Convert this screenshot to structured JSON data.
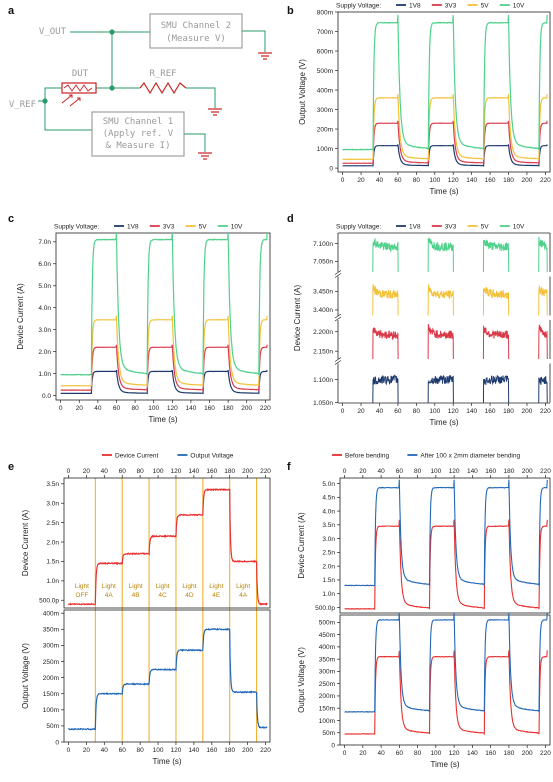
{
  "colors": {
    "1V8": "#1f3b6e",
    "3V3": "#d93a4a",
    "5V": "#f3c23a",
    "10V": "#4fd18b",
    "device_current": "#e8302f",
    "output_voltage": "#2368b8",
    "before": "#e8302f",
    "after": "#2368b8",
    "light_band": "#f2b233",
    "circuit_gray": "#a0a0a0",
    "node_green": "#2a9a6a",
    "wire_red": "#cc2222"
  },
  "panels": {
    "a": {
      "letter": "a",
      "labels": {
        "v_out": "V_OUT",
        "v_ref": "V_REF",
        "dut": "DUT",
        "r_ref": "R_REF",
        "smu2_line1": "SMU Channel 2",
        "smu2_line2": "(Measure V)",
        "smu1_line1": "SMU Channel 1",
        "smu1_line2": "(Apply ref. V",
        "smu1_line3": "& Measure I)"
      }
    },
    "b": {
      "letter": "b"
    },
    "c": {
      "letter": "c"
    },
    "d": {
      "letter": "d"
    },
    "e": {
      "letter": "e"
    },
    "f": {
      "letter": "f"
    }
  },
  "chart_data": [
    {
      "id": "b",
      "type": "line",
      "legend_title": "Supply Voltage:",
      "legend_position": "top",
      "xlabel": "Time (s)",
      "ylabel": "Output Voltage (V)",
      "xlim": [
        -5,
        225
      ],
      "ylim": [
        -20,
        800
      ],
      "x_ticks": [
        "0",
        "20",
        "40",
        "60",
        "80",
        "100",
        "120",
        "140",
        "160",
        "180",
        "200",
        "220"
      ],
      "y_ticks": [
        "0",
        "100m",
        "200m",
        "300m",
        "400m",
        "500m",
        "600m",
        "700m",
        "800m"
      ],
      "y_tick_values": [
        0,
        100,
        200,
        300,
        400,
        500,
        600,
        700,
        800
      ],
      "light_on_intervals": [
        [
          33,
          60
        ],
        [
          93,
          120
        ],
        [
          153,
          180
        ],
        [
          213,
          222
        ]
      ],
      "series": [
        {
          "name": "1V8",
          "color_key": "1V8",
          "off": 12,
          "on": 115
        },
        {
          "name": "3V3",
          "color_key": "3V3",
          "off": 25,
          "on": 230
        },
        {
          "name": "5V",
          "color_key": "5V",
          "off": 45,
          "on": 360
        },
        {
          "name": "10V",
          "color_key": "10V",
          "off": 95,
          "on": 745
        }
      ]
    },
    {
      "id": "c",
      "type": "line",
      "legend_title": "Supply Voltage:",
      "legend_position": "top",
      "xlabel": "Time (s)",
      "ylabel": "Device Current (A)",
      "xlim": [
        -5,
        225
      ],
      "ylim": [
        -0.2,
        7.4
      ],
      "x_ticks": [
        "0",
        "20",
        "40",
        "60",
        "80",
        "100",
        "120",
        "140",
        "160",
        "180",
        "200",
        "220"
      ],
      "y_ticks": [
        "0.0",
        "1.0n",
        "2.0n",
        "3.0n",
        "4.0n",
        "5.0n",
        "6.0n",
        "7.0n"
      ],
      "y_tick_values": [
        0,
        1,
        2,
        3,
        4,
        5,
        6,
        7
      ],
      "light_on_intervals": [
        [
          33,
          60
        ],
        [
          93,
          120
        ],
        [
          153,
          180
        ],
        [
          213,
          222
        ]
      ],
      "series": [
        {
          "name": "1V8",
          "color_key": "1V8",
          "off": 0.1,
          "on": 1.1
        },
        {
          "name": "3V3",
          "color_key": "3V3",
          "off": 0.25,
          "on": 2.2
        },
        {
          "name": "5V",
          "color_key": "5V",
          "off": 0.45,
          "on": 3.45
        },
        {
          "name": "10V",
          "color_key": "10V",
          "off": 0.95,
          "on": 7.1
        }
      ]
    },
    {
      "id": "d",
      "type": "line",
      "legend_title": "Supply Voltage:",
      "legend_position": "top",
      "xlabel": "Time (s)",
      "ylabel": "Device Current (A)",
      "xlim": [
        -5,
        225
      ],
      "broken_axis_segments": [
        {
          "series": "10V",
          "ticks": [
            "7.050n",
            "7.100n"
          ],
          "tick_values": [
            7.05,
            7.1
          ],
          "range": [
            7.02,
            7.13
          ]
        },
        {
          "series": "5V",
          "ticks": [
            "3.400n",
            "3.450n"
          ],
          "tick_values": [
            3.4,
            3.45
          ],
          "range": [
            3.385,
            3.49
          ]
        },
        {
          "series": "3V3",
          "ticks": [
            "2.150n",
            "2.200n"
          ],
          "tick_values": [
            2.15,
            2.2
          ],
          "range": [
            2.13,
            2.23
          ]
        },
        {
          "series": "1V8",
          "ticks": [
            "1.050n",
            "1.100n"
          ],
          "tick_values": [
            1.05,
            1.1
          ],
          "range": [
            1.05,
            1.135
          ]
        }
      ],
      "x_ticks": [
        "0",
        "20",
        "40",
        "60",
        "80",
        "100",
        "120",
        "140",
        "160",
        "180",
        "200",
        "220"
      ],
      "light_on_intervals": [
        [
          33,
          60
        ],
        [
          93,
          120
        ],
        [
          153,
          180
        ],
        [
          213,
          222
        ]
      ],
      "series": [
        {
          "name": "1V8",
          "color_key": "1V8",
          "on": 1.1
        },
        {
          "name": "3V3",
          "color_key": "3V3",
          "on": 2.2
        },
        {
          "name": "5V",
          "color_key": "5V",
          "on": 3.45
        },
        {
          "name": "10V",
          "color_key": "10V",
          "on": 7.1
        }
      ]
    },
    {
      "id": "e",
      "type": "line",
      "legend_position": "top",
      "xlabel": "Time (s)",
      "xlim": [
        -5,
        225
      ],
      "x_ticks": [
        "0",
        "20",
        "40",
        "60",
        "80",
        "100",
        "120",
        "140",
        "160",
        "180",
        "200",
        "220"
      ],
      "light_states": [
        {
          "x": [
            -5,
            30
          ],
          "label1": "Light",
          "label2": "OFF"
        },
        {
          "x": [
            30,
            60
          ],
          "label1": "Light",
          "label2": "4A"
        },
        {
          "x": [
            60,
            90
          ],
          "label1": "Light",
          "label2": "4B"
        },
        {
          "x": [
            90,
            120
          ],
          "label1": "Light",
          "label2": "4C"
        },
        {
          "x": [
            120,
            150
          ],
          "label1": "Light",
          "label2": "4D"
        },
        {
          "x": [
            150,
            180
          ],
          "label1": "Light",
          "label2": "4E"
        },
        {
          "x": [
            180,
            210
          ],
          "label1": "Light",
          "label2": "4A"
        }
      ],
      "band_edges": [
        30,
        60,
        90,
        120,
        150,
        180,
        210
      ],
      "subplots": [
        {
          "name": "Device Current",
          "color_key": "device_current",
          "ylabel": "Device Current (A)",
          "ylim": [
            0.3,
            3.65
          ],
          "y_ticks": [
            "500.0p",
            "1.0n",
            "1.5n",
            "2.0n",
            "2.5n",
            "3.0n",
            "3.5n"
          ],
          "y_tick_values": [
            0.5,
            1.0,
            1.5,
            2.0,
            2.5,
            3.0,
            3.5
          ],
          "levels": [
            0.4,
            1.45,
            1.7,
            2.15,
            2.7,
            3.35,
            1.5,
            0.4
          ]
        },
        {
          "name": "Output Voltage",
          "color_key": "output_voltage",
          "ylabel": "Output Voltage (V)",
          "ylim": [
            0,
            410
          ],
          "y_ticks": [
            "0",
            "50m",
            "100m",
            "150m",
            "200m",
            "250m",
            "300m",
            "350m",
            "400m"
          ],
          "y_tick_values": [
            0,
            50,
            100,
            150,
            200,
            250,
            300,
            350,
            400
          ],
          "levels": [
            40,
            150,
            180,
            225,
            285,
            350,
            155,
            45
          ]
        }
      ]
    },
    {
      "id": "f",
      "type": "line",
      "legend_position": "top",
      "xlabel": "Time (s)",
      "xlim": [
        -5,
        225
      ],
      "x_ticks": [
        "0",
        "20",
        "40",
        "60",
        "80",
        "100",
        "120",
        "140",
        "160",
        "180",
        "200",
        "220"
      ],
      "light_on_intervals": [
        [
          33,
          60
        ],
        [
          93,
          120
        ],
        [
          153,
          180
        ],
        [
          213,
          222
        ]
      ],
      "series_names": [
        "Before bending",
        "After 100 x 2mm diameter bending"
      ],
      "subplots": [
        {
          "ylabel": "Device Current (A)",
          "ylim": [
            0.3,
            5.2
          ],
          "y_ticks": [
            "500.0p",
            "1.0n",
            "1.5n",
            "2.0n",
            "2.5n",
            "3.0n",
            "3.5n",
            "4.0n",
            "4.5n",
            "5.0n"
          ],
          "y_tick_values": [
            0.5,
            1.0,
            1.5,
            2.0,
            2.5,
            3.0,
            3.5,
            4.0,
            4.5,
            5.0
          ],
          "series": [
            {
              "name": "Before bending",
              "color_key": "before",
              "off": 0.45,
              "on": 3.45
            },
            {
              "name": "After 100 x 2mm diameter bending",
              "color_key": "after",
              "off": 1.3,
              "on": 4.85
            }
          ]
        },
        {
          "ylabel": "Output Voltage (V)",
          "ylim": [
            0,
            530
          ],
          "y_ticks": [
            "0",
            "50m",
            "100m",
            "150m",
            "200m",
            "250m",
            "300m",
            "350m",
            "400m",
            "450m",
            "500m"
          ],
          "y_tick_values": [
            0,
            50,
            100,
            150,
            200,
            250,
            300,
            350,
            400,
            450,
            500
          ],
          "series": [
            {
              "name": "Before bending",
              "color_key": "before",
              "off": 45,
              "on": 360
            },
            {
              "name": "After 100 x 2mm diameter bending",
              "color_key": "after",
              "off": 135,
              "on": 510
            }
          ]
        }
      ]
    }
  ]
}
